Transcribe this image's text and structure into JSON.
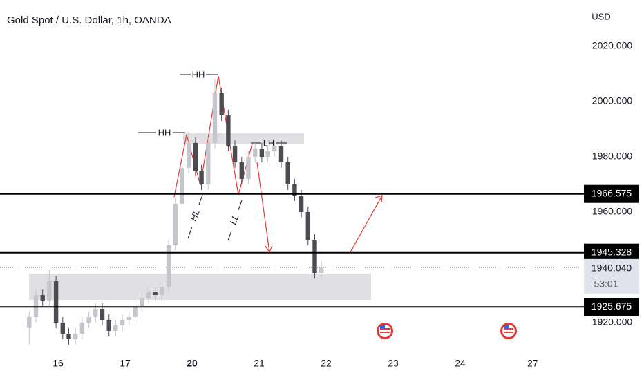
{
  "chart_data": {
    "type": "candlestick",
    "title": "Gold Spot / U.S. Dollar, 1h, OANDA",
    "y_axis_label": "USD",
    "x": [
      -0.43,
      -0.33,
      -0.23,
      -0.13,
      -0.03,
      0.07,
      0.16,
      0.26,
      0.36,
      0.46,
      0.56,
      0.66,
      0.76,
      0.86,
      0.96,
      1.06,
      1.15,
      1.25,
      1.35,
      1.45,
      1.55,
      1.65,
      1.75,
      1.85,
      1.95,
      2.05,
      2.14,
      2.24,
      2.34,
      2.44,
      2.54,
      2.64,
      2.74,
      2.84,
      2.94,
      3.04,
      3.13,
      3.23,
      3.33,
      3.43,
      3.53,
      3.63,
      3.73,
      3.83,
      3.93
    ],
    "open": [
      1918,
      1922,
      1930,
      1928,
      1935,
      1920,
      1916,
      1914,
      1916,
      1920,
      1922,
      1925,
      1921,
      1917,
      1919,
      1921,
      1922,
      1926,
      1929,
      1931,
      1930,
      1933,
      1948,
      1963,
      1976,
      1985,
      1975,
      1970,
      1985,
      2003,
      1995,
      1984,
      1978,
      1972,
      1980,
      1983,
      1980,
      1982,
      1984,
      1978,
      1970,
      1966,
      1960,
      1950,
      1938
    ],
    "high": [
      1924,
      1932,
      1932,
      1939,
      1937,
      1922,
      1918,
      1918,
      1922,
      1924,
      1927,
      1927,
      1923,
      1921,
      1923,
      1924,
      1928,
      1931,
      1933,
      1933,
      1935,
      1950,
      1965,
      1978,
      1989,
      1987,
      1977,
      1987,
      2008,
      2005,
      1997,
      1986,
      1980,
      1982,
      1985,
      1985,
      1984,
      1986,
      1986,
      1980,
      1972,
      1968,
      1962,
      1952,
      1942
    ],
    "low": [
      1912,
      1920,
      1926,
      1926,
      1918,
      1914,
      1912,
      1912,
      1914,
      1918,
      1920,
      1919,
      1915,
      1915,
      1917,
      1919,
      1920,
      1924,
      1927,
      1928,
      1928,
      1931,
      1946,
      1961,
      1974,
      1973,
      1968,
      1968,
      1983,
      1993,
      1982,
      1976,
      1970,
      1970,
      1978,
      1978,
      1978,
      1980,
      1976,
      1968,
      1964,
      1958,
      1948,
      1936,
      1936
    ],
    "close": [
      1922,
      1930,
      1928,
      1935,
      1920,
      1916,
      1914,
      1916,
      1920,
      1922,
      1925,
      1921,
      1917,
      1919,
      1921,
      1922,
      1926,
      1929,
      1931,
      1930,
      1933,
      1948,
      1963,
      1976,
      1985,
      1975,
      1970,
      1985,
      2003,
      1995,
      1984,
      1978,
      1972,
      1980,
      1983,
      1980,
      1982,
      1984,
      1978,
      1970,
      1966,
      1960,
      1950,
      1938,
      1940
    ],
    "up_color": "#c4c6cc",
    "down_color": "#4a4c52",
    "xlim": [
      -0.866,
      7.794
    ],
    "xticks": [
      {
        "value": 0,
        "label": "16"
      },
      {
        "value": 1,
        "label": "17"
      },
      {
        "value": 2,
        "label": "20"
      },
      {
        "value": 3,
        "label": "21"
      },
      {
        "value": 4,
        "label": "22"
      },
      {
        "value": 5,
        "label": "23"
      },
      {
        "value": 6,
        "label": "24"
      },
      {
        "value": 7.08,
        "label": "27"
      }
    ],
    "ylim": [
      1909.25,
      2036.75
    ],
    "yticks": [
      {
        "value": 2020,
        "label": "2020.000"
      },
      {
        "value": 2000,
        "label": "2000.000"
      },
      {
        "value": 1980,
        "label": "1980.000"
      },
      {
        "value": 1960,
        "label": "1960.000"
      },
      {
        "value": 1920,
        "label": "1920.000"
      }
    ],
    "levels": [
      1966.575,
      1945.328,
      1925.675
    ],
    "current_price": {
      "value": 1940.04,
      "label": "1940.040"
    },
    "countdown": "53:01",
    "annotations": [
      "HH",
      "HH",
      "HL",
      "LL",
      "LH"
    ]
  }
}
